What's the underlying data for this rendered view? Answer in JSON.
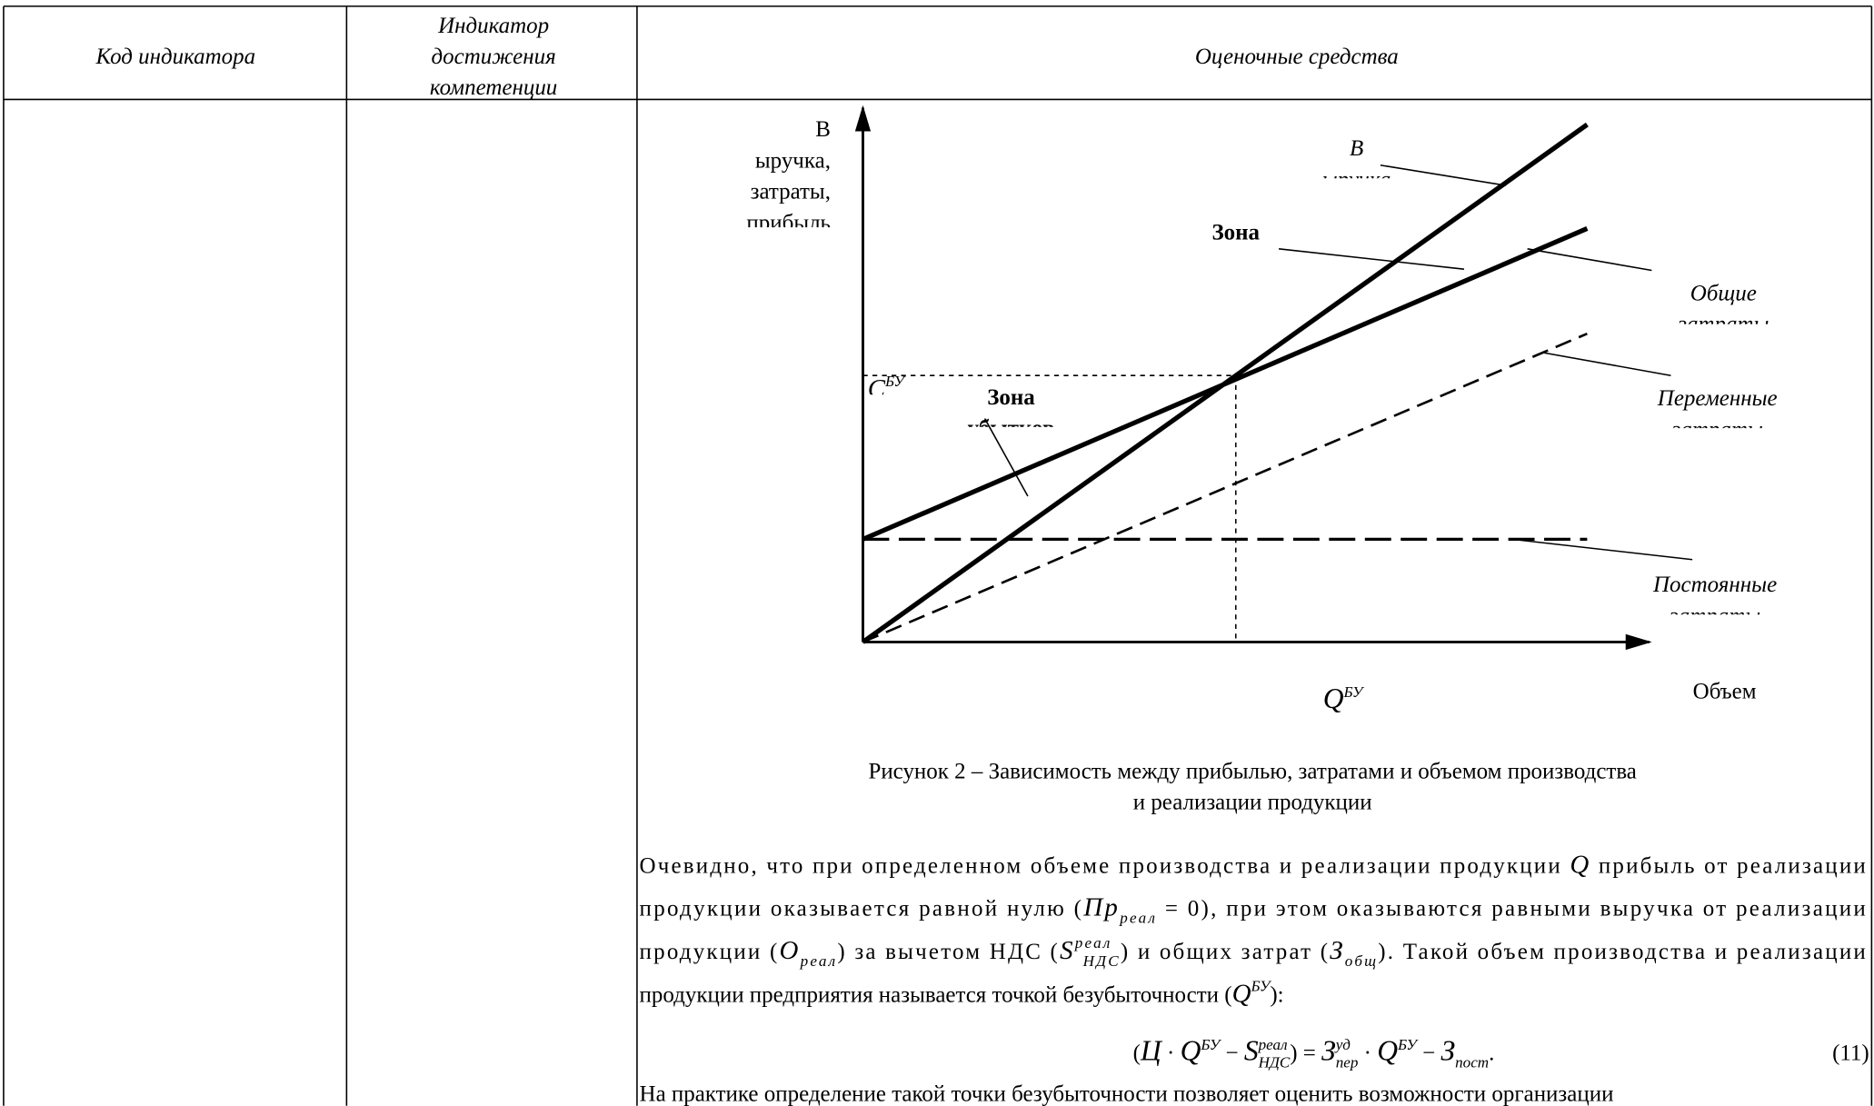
{
  "table": {
    "headers": [
      "Код индикатора",
      [
        "Индикатор",
        "достижения",
        "компетенции"
      ],
      "Оценочные средства"
    ]
  },
  "figure": {
    "y_axis_label": [
      "В",
      "ыручка,",
      "затраты,",
      "прибыль"
    ],
    "revenue_label": [
      "В",
      "ыручка"
    ],
    "profit_zone_label": "Зона",
    "total_costs_label": [
      "Общие",
      "затраты"
    ],
    "variable_costs_label": [
      "Переменные",
      "затраты"
    ],
    "fixed_costs_label": [
      "Постоянные",
      "затраты"
    ],
    "loss_zone_label": [
      "Зона",
      "убытков"
    ],
    "c_label": {
      "text": "C",
      "sup": "БУ"
    },
    "q_label": {
      "text": "Q",
      "sup": "БУ"
    },
    "x_axis_label": "Объем",
    "caption": [
      "Рисунок 2 – Зависимость между прибылью, затратами и объемом производства",
      "и реализации продукции"
    ]
  },
  "text": {
    "lines": [
      [
        "Очевидно, что при определенном объеме производства и реализации продукции ",
        {
          "text": "Q"
        },
        " прибыль от реализации"
      ],
      [
        "продукции оказывается равной нулю (",
        {
          "text": "Пр",
          "sub": "реал"
        },
        " = 0), при этом оказываются равными выручка от реализации"
      ],
      [
        "продукции (",
        {
          "text": "О",
          "sub": "реал"
        },
        ") за вычетом НДС (",
        {
          "text": "S",
          "sup": "реал",
          "sub": "НДС"
        },
        ") и общих затрат (",
        {
          "text": "З",
          "sub": "общ"
        },
        "). Такой объем производства и реализации"
      ],
      [
        "продукции предприятия называется точкой безубыточности (",
        {
          "text": "Q",
          "sup": "БУ"
        },
        "):"
      ]
    ],
    "formula": [
      "(",
      {
        "text": "Ц"
      },
      " · ",
      {
        "text": "Q",
        "sup": "БУ"
      },
      " − ",
      {
        "text": "S",
        "sup": "реал",
        "sub": "НДС"
      },
      ") = ",
      {
        "text": "З",
        "sup": "уд",
        "sub": "пер"
      },
      " · ",
      {
        "text": "Q",
        "sup": "БУ"
      },
      " − ",
      {
        "text": "З",
        "sub": "пост"
      },
      "."
    ],
    "formula_number": "(11)",
    "next_line": [
      "На практике определение такой точки безубыточности позволяет оценить возможности организации"
    ]
  }
}
